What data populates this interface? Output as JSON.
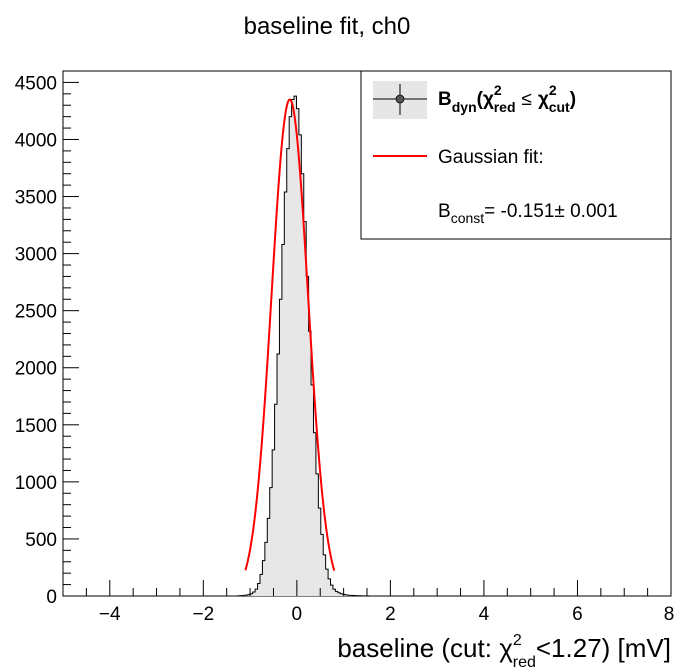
{
  "chart_data": {
    "type": "bar",
    "title": "baseline fit, ch0",
    "xlabel": {
      "prefix": "baseline (cut: ",
      "symbol": "χ",
      "sup": "2",
      "sub": "red",
      "suffix": "<1.27) [mV]"
    },
    "ylabel": "",
    "xlim": [
      -5,
      8
    ],
    "ylim": [
      0,
      4600
    ],
    "x_ticks": [
      -4,
      -2,
      0,
      2,
      4,
      6,
      8
    ],
    "x_tick_labels": [
      "−4",
      "−2",
      "0",
      "2",
      "4",
      "6",
      "8"
    ],
    "y_ticks": [
      0,
      500,
      1000,
      1500,
      2000,
      2500,
      3000,
      3500,
      4000,
      4500
    ],
    "y_tick_labels": [
      "0",
      "500",
      "1000",
      "1500",
      "2000",
      "2500",
      "3000",
      "3500",
      "4000",
      "4500"
    ],
    "grid": false,
    "legend_position": "top-right",
    "histogram": {
      "bin_edges_start": -5.0,
      "bin_width": 0.052,
      "counts_description": "histogram counts by bin",
      "counts": [
        0,
        0,
        0,
        0,
        0,
        0,
        0,
        0,
        0,
        0,
        0,
        0,
        0,
        0,
        0,
        0,
        0,
        0,
        0,
        0,
        0,
        0,
        0,
        0,
        0,
        0,
        0,
        0,
        0,
        0,
        0,
        0,
        0,
        0,
        0,
        0,
        0,
        0,
        0,
        0,
        0,
        0,
        0,
        0,
        0,
        0,
        0,
        0,
        0,
        0,
        0,
        0,
        0,
        0,
        0,
        0,
        0,
        0,
        0,
        0,
        0,
        0,
        0,
        0,
        0,
        0,
        0,
        0,
        0,
        0,
        0,
        0,
        2,
        3,
        5,
        8,
        12,
        20,
        35,
        60,
        110,
        190,
        310,
        470,
        680,
        950,
        1280,
        1680,
        2120,
        2600,
        3080,
        3540,
        3920,
        4200,
        4350,
        4380,
        4270,
        4040,
        3700,
        3280,
        2800,
        2320,
        1850,
        1430,
        1070,
        770,
        540,
        360,
        235,
        150,
        95,
        60,
        40,
        28,
        20,
        14,
        10,
        7,
        5,
        4,
        3,
        2,
        2,
        1,
        1,
        1,
        0,
        0,
        0,
        0,
        0,
        0,
        0,
        0,
        0,
        0,
        0,
        0,
        0,
        0,
        0,
        0,
        0,
        0,
        0,
        0,
        0,
        0,
        0,
        0,
        0,
        0,
        0,
        0,
        0,
        0,
        0,
        0,
        0,
        0,
        0,
        0,
        0,
        0,
        0,
        0,
        0,
        0,
        0,
        0,
        0,
        0,
        0,
        0,
        0,
        0,
        0,
        0,
        0,
        0,
        0,
        0,
        0,
        0,
        0,
        0,
        0,
        0,
        0,
        0,
        0,
        0,
        0,
        0,
        0,
        0,
        0,
        0,
        0,
        0,
        0,
        0,
        0,
        0,
        0,
        0,
        0,
        0,
        0,
        0,
        0,
        0,
        0,
        0,
        0,
        0,
        0,
        0,
        0,
        0,
        0,
        0,
        0,
        0,
        0,
        0,
        0,
        0,
        0,
        0,
        0,
        0,
        0,
        0,
        0,
        0,
        0,
        0,
        0,
        0,
        0,
        0,
        0,
        0,
        0,
        0,
        0
      ]
    },
    "series": [
      {
        "kind": "histogram",
        "color": "#e6e6e6",
        "edge_color": "#000000"
      },
      {
        "kind": "gaussian-fit",
        "color": "#ff0000",
        "mean": -0.151,
        "sigma": 0.39,
        "amplitude": 4350,
        "range": [
          -1.1,
          0.8
        ]
      }
    ],
    "legend": {
      "entry1": {
        "B": "B",
        "dyn": "dyn",
        "chi": "χ",
        "sup1": "2",
        "sub1": "red",
        "leq": "≤",
        "chi2": "χ",
        "sup2": "2",
        "sub2": "cut",
        "open": "(",
        "close": ")"
      },
      "entry2": "Gaussian fit:",
      "entry3": {
        "B": "B",
        "sub": "const",
        "value": "= -0.151± 0.001"
      }
    }
  }
}
